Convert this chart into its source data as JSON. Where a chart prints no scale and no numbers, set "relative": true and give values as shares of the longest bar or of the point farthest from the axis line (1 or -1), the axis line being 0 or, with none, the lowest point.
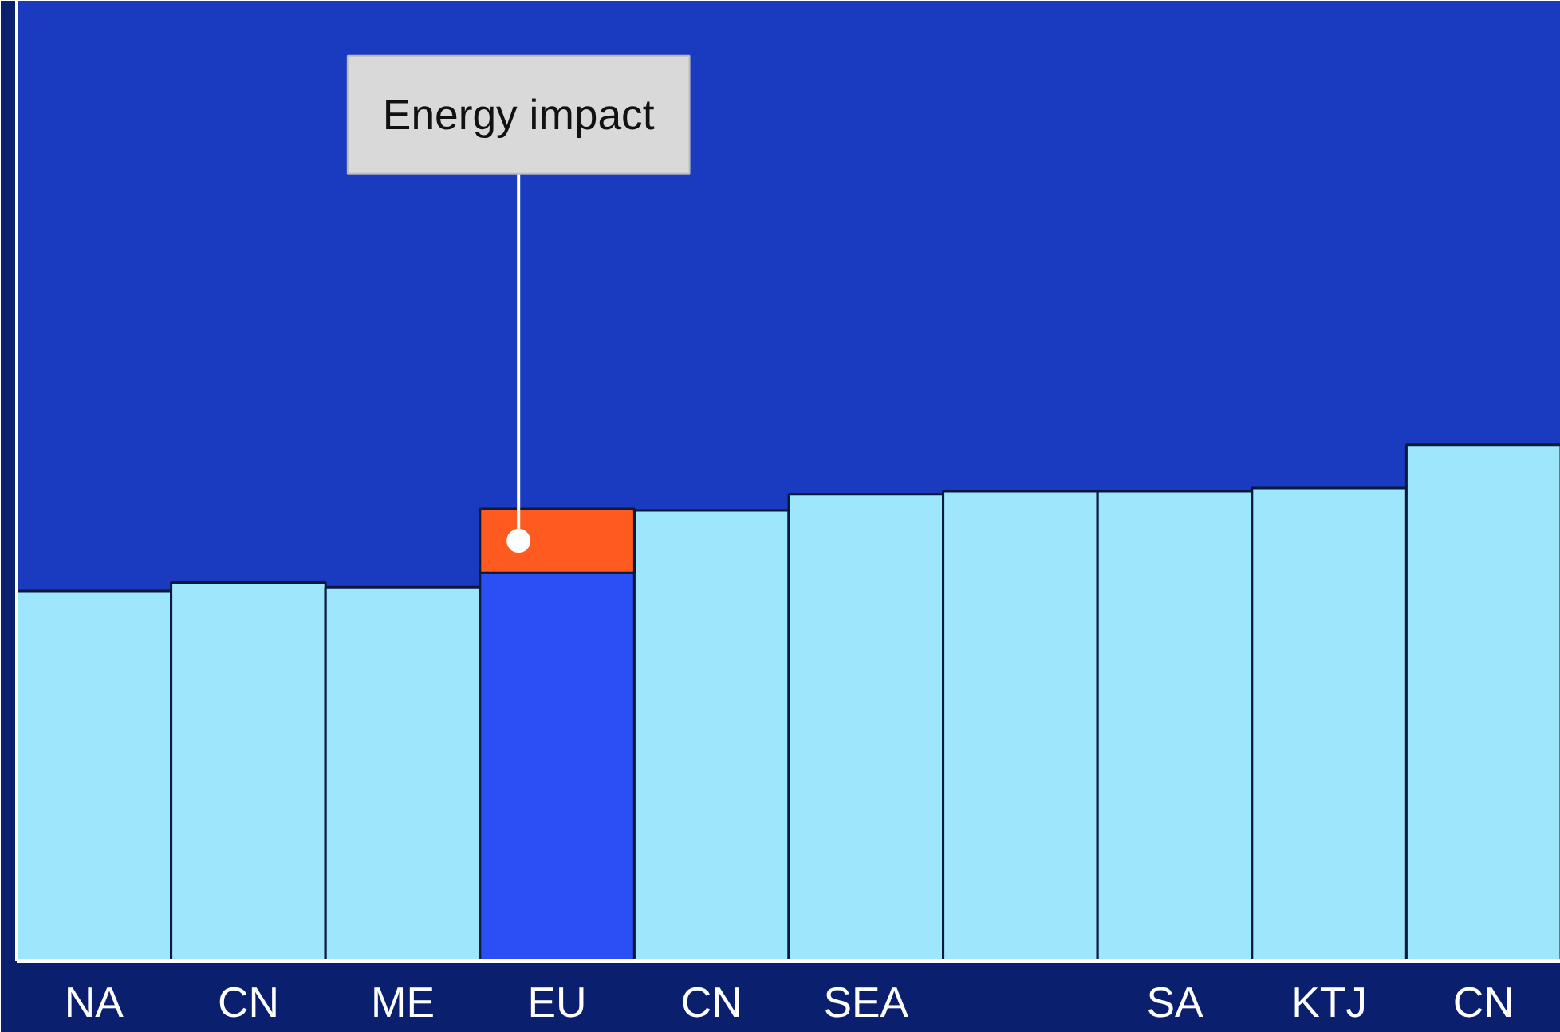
{
  "chart_data": {
    "type": "bar",
    "relative": true,
    "stacked": true,
    "grid": false,
    "tick_labels": "x",
    "categories": [
      "NA",
      "CN",
      "ME",
      "EU",
      "CN",
      "SEA",
      null,
      "SA",
      "KTJ",
      "CN"
    ],
    "series": [
      {
        "colors": [
          "#9ee6fb",
          "#9ee6fb",
          "#9ee6fb",
          "#2a4ff5",
          "#9ee6fb",
          "#9ee6fb",
          "#9ee6fb",
          "#9ee6fb",
          "#9ee6fb",
          "#9ee6fb"
        ],
        "values": [
          0.717,
          0.733,
          0.724,
          0.752,
          0.873,
          0.904,
          0.91,
          0.91,
          0.916,
          1.0
        ]
      },
      {
        "color": "#ff5a1f",
        "values": [
          null,
          null,
          null,
          0.124,
          null,
          null,
          null,
          null,
          null,
          null
        ]
      }
    ],
    "annotations": [
      "Energy impact"
    ]
  }
}
